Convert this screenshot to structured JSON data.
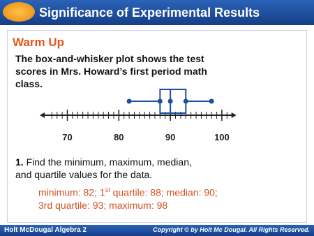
{
  "header": {
    "title": "Significance of Experimental Results"
  },
  "warm_up": {
    "heading": "Warm Up",
    "prompt_lines": [
      "The box-and-whisker plot shows the test",
      "scores in Mrs. Howard’s first period math",
      "class."
    ]
  },
  "chart_data": {
    "type": "box",
    "min": 82,
    "q1": 88,
    "median": 90,
    "q3": 93,
    "max": 98,
    "xlim": [
      66,
      102
    ],
    "xticks": [
      70,
      80,
      90,
      100
    ],
    "minor_xticks": [
      67,
      68,
      69,
      70,
      71,
      72,
      73,
      74,
      75,
      76,
      77,
      78,
      79,
      80,
      81,
      82,
      83,
      84,
      85,
      86,
      87,
      88,
      89,
      90,
      91,
      92,
      93,
      94,
      95,
      96,
      97,
      98,
      99,
      100,
      101
    ],
    "color": "#1f4e9c"
  },
  "question": {
    "number": "1.",
    "lines": [
      "Find the minimum, maximum, median,",
      "and quartile values for the data."
    ]
  },
  "answer": {
    "line1_parts": [
      "minimum: 82; 1",
      "st",
      " quartile: 88; median: 90;"
    ],
    "line2": "3rd quartile: 93; maximum: 98"
  },
  "footer": {
    "left": "Holt McDougal Algebra 2",
    "right": "Copyright © by Holt Mc Dougal. All Rights Reserved."
  }
}
